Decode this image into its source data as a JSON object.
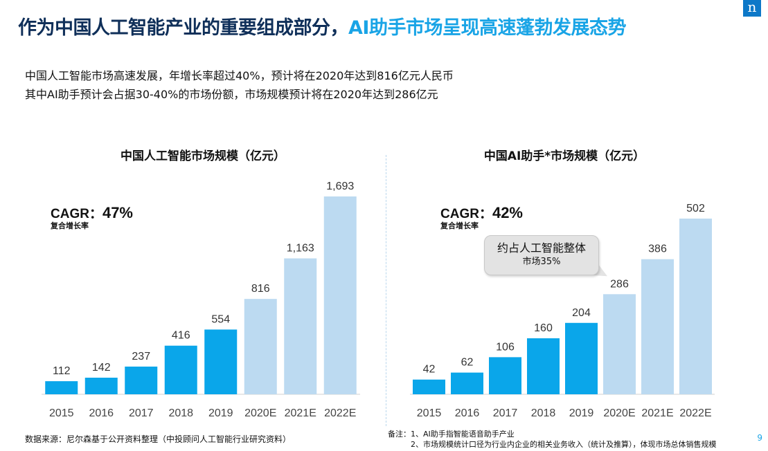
{
  "header": {
    "title_part1": "作为中国人工智能产业的重要组成部分，",
    "title_part2": "AI助手市场呈现高速蓬勃发展态势",
    "logo_text": "n"
  },
  "intro": {
    "line1": "中国人工智能市场高速发展，年增长率超过40%，预计将在2020年达到816亿元人民币",
    "line2": "其中AI助手预计会占据30-40%的市场份额，市场规模预计将在2020年达到286亿元"
  },
  "colors": {
    "actual_bar": "#0aa6ea",
    "forecast_bar": "#bcdaf1",
    "title_dark": "#0f2f59",
    "title_accent": "#19a4e6"
  },
  "chart_data": [
    {
      "type": "bar",
      "title": "中国人工智能市场规模（亿元）",
      "categories": [
        "2015",
        "2016",
        "2017",
        "2018",
        "2019",
        "2020E",
        "2021E",
        "2022E"
      ],
      "values": [
        112,
        142,
        237,
        416,
        554,
        816,
        1163,
        1693
      ],
      "value_labels": [
        "112",
        "142",
        "237",
        "416",
        "554",
        "816",
        "1,163",
        "1,693"
      ],
      "forecast_from_index": 5,
      "cagr_label": "CAGR：",
      "cagr_value": "47%",
      "cagr_sub": "复合增长率",
      "grid": false
    },
    {
      "type": "bar",
      "title": "中国AI助手*市场规模（亿元）",
      "categories": [
        "2015",
        "2016",
        "2017",
        "2018",
        "2019",
        "2020E",
        "2021E",
        "2022E"
      ],
      "values": [
        42,
        62,
        106,
        160,
        204,
        286,
        386,
        502
      ],
      "value_labels": [
        "42",
        "62",
        "106",
        "160",
        "204",
        "286",
        "386",
        "502"
      ],
      "forecast_from_index": 5,
      "cagr_label": "CAGR：",
      "cagr_value": "42%",
      "cagr_sub": "复合增长率",
      "callout_line1": "约占人工智能整体",
      "callout_line2": "市场35%",
      "grid": false
    }
  ],
  "footer": {
    "source": "数据来源：尼尔森基于公开资料整理（中投顾问人工智能行业研究资料）",
    "note1": "备注：1、AI助手指智能语音助手产业",
    "note2": "2、市场规模统计口径为行业内企业的相关业务收入（统计及推算），体现市场总体销售规模",
    "page_number": "9"
  }
}
